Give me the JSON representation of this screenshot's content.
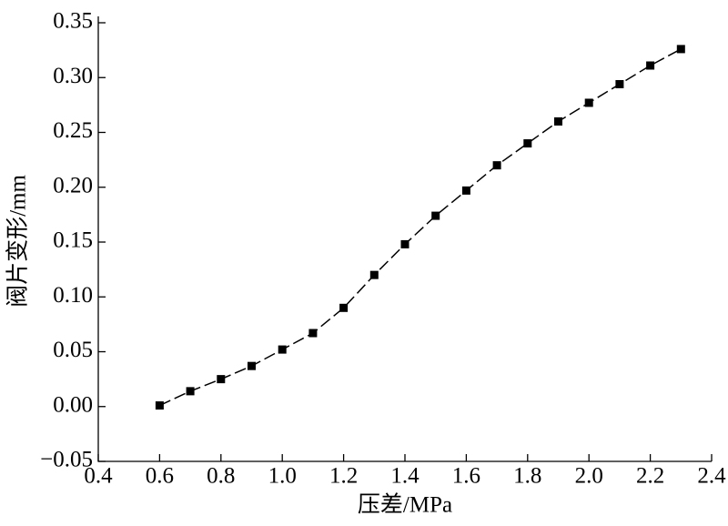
{
  "chart_data": {
    "type": "line",
    "x_label": "压差/MPa",
    "y_label": "阀片变形/mm",
    "x": [
      0.6,
      0.7,
      0.8,
      0.9,
      1.0,
      1.1,
      1.2,
      1.3,
      1.4,
      1.5,
      1.6,
      1.7,
      1.8,
      1.9,
      2.0,
      2.1,
      2.2,
      2.3
    ],
    "series": [
      {
        "color": "#000000",
        "values": [
          0.001,
          0.014,
          0.025,
          0.037,
          0.052,
          0.067,
          0.09,
          0.12,
          0.148,
          0.174,
          0.197,
          0.22,
          0.24,
          0.26,
          0.277,
          0.294,
          0.311,
          0.326
        ]
      }
    ],
    "xlim": [
      0.4,
      2.4
    ],
    "xticks": [
      0.4,
      0.6,
      0.8,
      {
        "value": 1,
        "label": "1.0"
      },
      1.2,
      1.4,
      1.6,
      1.8,
      {
        "value": 2,
        "label": "2.0"
      },
      2.2,
      2.4
    ],
    "ylim": [
      -0.05,
      0.35
    ],
    "yticks": [
      {
        "value": -0.05,
        "label": "−0.05"
      },
      {
        "value": 0,
        "label": "0.00"
      },
      0.05,
      {
        "value": 0.1,
        "label": "0.10"
      },
      0.15,
      {
        "value": 0.2,
        "label": "0.20"
      },
      0.25,
      {
        "value": 0.3,
        "label": "0.30"
      },
      0.35
    ],
    "marker": "square",
    "line_style": "dashed"
  }
}
